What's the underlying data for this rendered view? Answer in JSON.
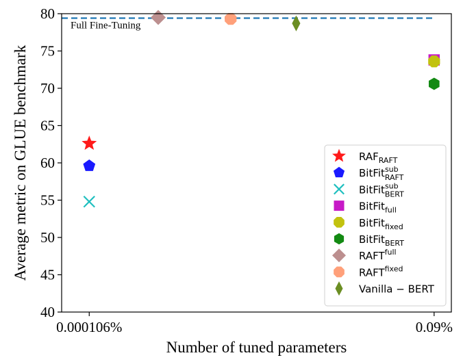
{
  "chart_data": {
    "type": "scatter",
    "title": "",
    "xlabel": "Number of tuned parameters",
    "ylabel": "Average metric on GLUE benchmark",
    "ylim": [
      40,
      80
    ],
    "yticks": [
      "40",
      "45",
      "50",
      "55",
      "60",
      "65",
      "70",
      "75",
      "80"
    ],
    "xticks": [
      {
        "label": "0.000106%",
        "pos": 0
      },
      {
        "label": "0.09%",
        "pos": 1
      }
    ],
    "xlim": [
      -0.08,
      1.05
    ],
    "grid": false,
    "legend_position": "bottom-right",
    "reference_line": {
      "label": "Full Fine-Tuning",
      "value": 79.4,
      "color": "#1f77b4",
      "style": "dashed"
    },
    "series": [
      {
        "name": "RAF",
        "sub": "RAFT",
        "sup": "",
        "marker": "star",
        "color": "#ff1a1a",
        "x": 0,
        "y": 62.6
      },
      {
        "name": "BitFit",
        "sub": "RAFT",
        "sup": "sub",
        "marker": "pentagon",
        "color": "#1a1aff",
        "x": 0,
        "y": 59.6
      },
      {
        "name": "BitFit",
        "sub": "BERT",
        "sup": "sub",
        "marker": "x",
        "color": "#1fbfbf",
        "x": 0,
        "y": 54.8
      },
      {
        "name": "BitFit",
        "sub": "full",
        "sup": "",
        "marker": "square",
        "color": "#c71ac7",
        "x": 1,
        "y": 73.8
      },
      {
        "name": "BitFit",
        "sub": "fixed",
        "sup": "",
        "marker": "octagon",
        "color": "#c2c20f",
        "x": 1,
        "y": 73.6
      },
      {
        "name": "BitFit",
        "sub": "BERT",
        "sup": "",
        "marker": "hexagon",
        "color": "#138a13",
        "x": 1,
        "y": 70.6
      },
      {
        "name": "RAFT",
        "sub": "",
        "sup": "full",
        "marker": "diamond",
        "color": "#bc8f8f",
        "x": 0.2,
        "y": 79.5
      },
      {
        "name": "RAFT",
        "sub": "",
        "sup": "fixed",
        "marker": "octagon",
        "color": "#ffa07a",
        "x": 0.41,
        "y": 79.3
      },
      {
        "name": "Vanilla − BERT",
        "sub": "",
        "sup": "",
        "marker": "thin_diamond",
        "color": "#6b8e23",
        "x": 0.6,
        "y": 78.7
      }
    ]
  }
}
